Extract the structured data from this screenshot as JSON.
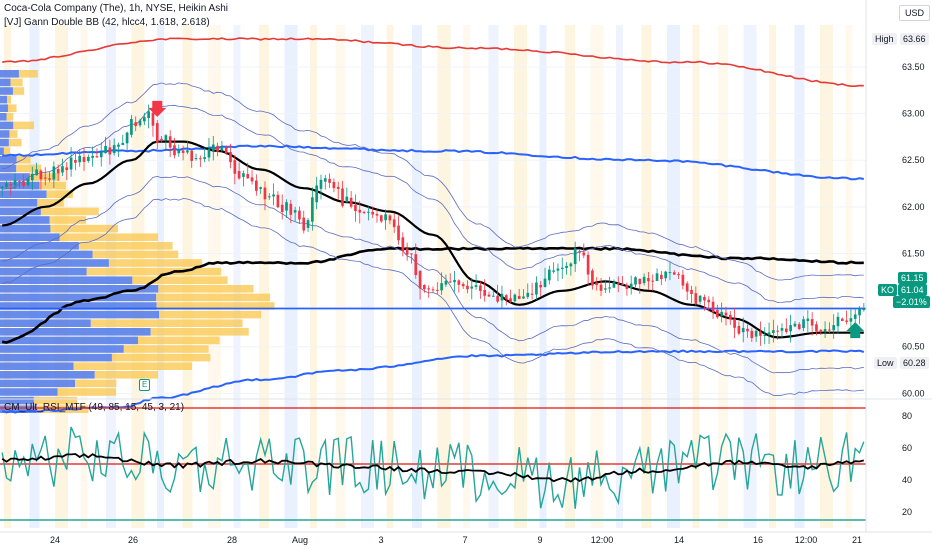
{
  "header": {
    "title": "Coca-Cola Company (The), 1h, NYSE, Heikin Ashi",
    "indicator": "[VJ] Gann Double BB (42, hlcc4, 1.618, 2.618)"
  },
  "currency_button": "USD",
  "price_labels": {
    "high_label": "High",
    "high_value": "63.66",
    "low_label": "Low",
    "low_value": "60.28",
    "symbol": "KO",
    "last": "61.04",
    "change": "−2.01%",
    "upper_tag": "61.15"
  },
  "rsi_label": "CM_Ult_RSI_MTF (49, 85, 15, 45, 3, 21)",
  "marker_letter": "E",
  "chart_data": [
    {
      "type": "candlestick",
      "title": "Coca-Cola Company (The), 1h, NYSE, Heikin Ashi",
      "ylim": [
        59.95,
        63.95
      ],
      "y_ticks": [
        63.5,
        63.0,
        62.5,
        62.0,
        61.5,
        60.5,
        60.0
      ],
      "y_tick_labels": [
        "63.50",
        "63.00",
        "62.50",
        "62.00",
        "61.50",
        "60.50",
        "60.00"
      ],
      "x_tick_labels": [
        "24",
        "26",
        "28",
        "Aug",
        "3",
        "7",
        "9",
        "12:00",
        "14",
        "16",
        "12:00",
        "21"
      ],
      "price_reference_line": 60.91,
      "last_price": 61.04,
      "high": 63.66,
      "low": 60.28,
      "anchors": [
        [
          0,
          62.2
        ],
        [
          10,
          62.35
        ],
        [
          18,
          62.5
        ],
        [
          26,
          62.6
        ],
        [
          30,
          62.9
        ],
        [
          34,
          63.05
        ],
        [
          36,
          62.75
        ],
        [
          42,
          62.55
        ],
        [
          50,
          62.6
        ],
        [
          56,
          62.3
        ],
        [
          62,
          62.1
        ],
        [
          66,
          62.0
        ],
        [
          70,
          61.8
        ],
        [
          74,
          62.35
        ],
        [
          80,
          62.05
        ],
        [
          86,
          61.9
        ],
        [
          90,
          61.85
        ],
        [
          94,
          61.55
        ],
        [
          98,
          61.05
        ],
        [
          104,
          61.25
        ],
        [
          110,
          61.15
        ],
        [
          116,
          61.0
        ],
        [
          122,
          61.1
        ],
        [
          128,
          61.3
        ],
        [
          134,
          61.5
        ],
        [
          138,
          61.1
        ],
        [
          144,
          61.15
        ],
        [
          150,
          61.2
        ],
        [
          156,
          61.3
        ],
        [
          162,
          61.0
        ],
        [
          168,
          60.8
        ],
        [
          174,
          60.6
        ],
        [
          180,
          60.7
        ],
        [
          186,
          60.75
        ],
        [
          190,
          60.65
        ],
        [
          196,
          60.8
        ],
        [
          200,
          60.9
        ]
      ],
      "bands": {
        "outer_upper_red": [
          [
            0,
            63.55
          ],
          [
            40,
            63.8
          ],
          [
            70,
            63.8
          ],
          [
            110,
            63.7
          ],
          [
            160,
            63.55
          ],
          [
            200,
            63.3
          ]
        ],
        "upper_blue": [
          [
            0,
            62.55
          ],
          [
            30,
            62.6
          ],
          [
            60,
            62.65
          ],
          [
            100,
            62.6
          ],
          [
            150,
            62.5
          ],
          [
            200,
            62.3
          ]
        ],
        "mid_black": [
          [
            0,
            60.55
          ],
          [
            20,
            61.0
          ],
          [
            30,
            61.1
          ],
          [
            40,
            61.3
          ],
          [
            50,
            61.4
          ],
          [
            70,
            61.4
          ],
          [
            90,
            61.55
          ],
          [
            140,
            61.55
          ],
          [
            170,
            61.45
          ],
          [
            200,
            61.4
          ]
        ],
        "lower_blue": [
          [
            0,
            59.8
          ],
          [
            28,
            59.85
          ],
          [
            36,
            59.95
          ],
          [
            60,
            60.15
          ],
          [
            80,
            60.25
          ],
          [
            110,
            60.4
          ],
          [
            150,
            60.45
          ],
          [
            200,
            60.45
          ]
        ],
        "basis_black": [
          [
            0,
            61.8
          ],
          [
            10,
            62.0
          ],
          [
            20,
            62.25
          ],
          [
            30,
            62.5
          ],
          [
            36,
            62.7
          ],
          [
            42,
            62.7
          ],
          [
            50,
            62.6
          ],
          [
            60,
            62.4
          ],
          [
            70,
            62.2
          ],
          [
            80,
            62.05
          ],
          [
            90,
            61.95
          ],
          [
            100,
            61.7
          ],
          [
            110,
            61.2
          ],
          [
            120,
            60.95
          ],
          [
            130,
            61.1
          ],
          [
            140,
            61.2
          ],
          [
            150,
            61.1
          ],
          [
            160,
            60.95
          ],
          [
            170,
            60.8
          ],
          [
            180,
            60.6
          ],
          [
            190,
            60.65
          ],
          [
            200,
            60.65
          ]
        ]
      },
      "arrows": [
        {
          "x": 36,
          "dir": "down"
        },
        {
          "x": 198,
          "dir": "up"
        }
      ]
    },
    {
      "type": "line",
      "title": "CM_Ult_RSI_MTF (49, 85, 15, 45, 3, 21)",
      "ylim": [
        10,
        90
      ],
      "y_ticks": [
        80,
        60,
        40,
        20
      ],
      "levels": [
        85,
        50,
        15
      ],
      "smoothed_anchors": [
        [
          0,
          52
        ],
        [
          20,
          55
        ],
        [
          40,
          49
        ],
        [
          60,
          52
        ],
        [
          80,
          49
        ],
        [
          100,
          46
        ],
        [
          115,
          44
        ],
        [
          130,
          40
        ],
        [
          150,
          46
        ],
        [
          170,
          51
        ],
        [
          185,
          48
        ],
        [
          200,
          52
        ]
      ]
    }
  ],
  "colors": {
    "bull": "#089981",
    "bear": "#f23645",
    "red_band": "#e53935",
    "blue_band": "#2962ff",
    "thin_band": "#5c6bc0",
    "vp_blue": "#4f78e8",
    "vp_yellow": "#f9c64b",
    "rsi_teal": "#26a69a",
    "ref_line": "#2962ff"
  }
}
